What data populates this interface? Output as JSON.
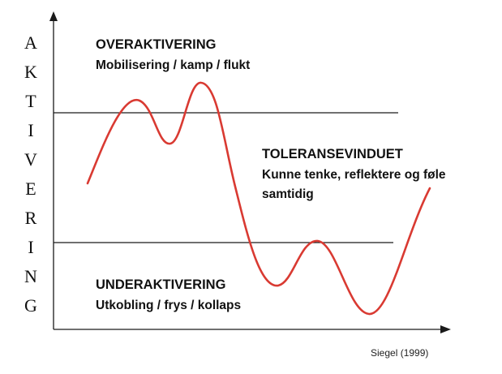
{
  "y_axis_label_letters": [
    "A",
    "K",
    "T",
    "I",
    "V",
    "E",
    "R",
    "I",
    "N",
    "G"
  ],
  "zones": {
    "over": {
      "title": "OVERAKTIVERING",
      "description": "Mobilisering / kamp / flukt"
    },
    "window": {
      "title": "TOLERANSEVINDUET",
      "description_line1": "Kunne tenke, reflektere og føle",
      "description_line2": "samtidig"
    },
    "under": {
      "title": "UNDERAKTIVERING",
      "description": "Utkobling / frys / kollaps"
    }
  },
  "credit": "Siegel (1999)",
  "colors": {
    "curve": "#d93a32",
    "axis": "#1a1a1a",
    "threshold_line": "#1a1a1a"
  }
}
